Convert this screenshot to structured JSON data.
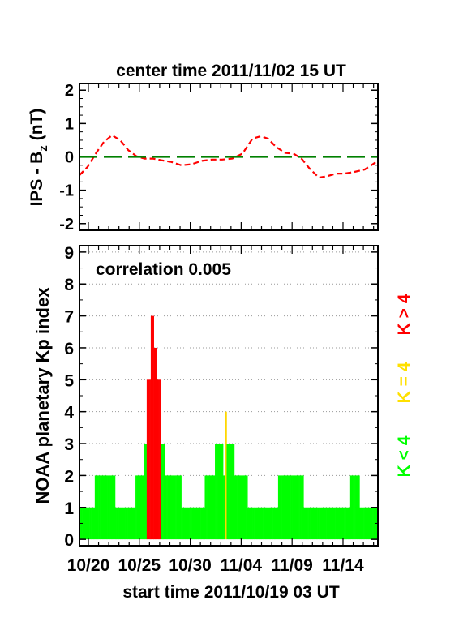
{
  "chart_data": [
    {
      "type": "line",
      "title": "center time 2011/11/02 15 UT",
      "ylabel_main": "IPS - B",
      "ylabel_sub": "z",
      "ylabel_unit": "(nT)",
      "ylim": [
        -2.2,
        2.2
      ],
      "yticks": [
        "2",
        "1",
        "0",
        "-1",
        "-2"
      ],
      "ytick_values": [
        2,
        1,
        0,
        -1,
        -2
      ],
      "xlim_days": [
        0,
        29.3
      ],
      "series": [
        {
          "color": "#ff0000",
          "style": "dashed",
          "x_days": [
            0,
            0.8,
            1.6,
            2.4,
            3.2,
            4.0,
            4.8,
            5.6,
            6.4,
            7.2,
            8.0,
            9.0,
            10.0,
            11.0,
            12.0,
            13.0,
            14.0,
            15.0,
            16.0,
            17.0,
            17.8,
            18.5,
            19.3,
            20.2,
            21.0,
            21.8,
            22.6,
            23.5,
            24.3,
            25.2,
            26.0,
            27.0,
            28.0,
            29.3
          ],
          "y": [
            -0.55,
            -0.3,
            0.1,
            0.45,
            0.65,
            0.5,
            0.2,
            0.02,
            -0.05,
            -0.05,
            -0.1,
            -0.15,
            -0.25,
            -0.22,
            -0.12,
            -0.08,
            -0.08,
            -0.05,
            0.1,
            0.55,
            0.62,
            0.55,
            0.3,
            0.12,
            0.1,
            -0.05,
            -0.35,
            -0.62,
            -0.58,
            -0.5,
            -0.5,
            -0.45,
            -0.38,
            -0.12
          ]
        },
        {
          "color": "#008000",
          "style": "long-dash",
          "x_days": [
            0,
            29.3
          ],
          "y": [
            0,
            0
          ]
        }
      ]
    },
    {
      "type": "bar",
      "annotation": "correlation 0.005",
      "ylabel": "NOAA planetary Kp index",
      "xlabel": "start time 2011/10/19 03 UT",
      "xticks": [
        "10/20",
        "10/25",
        "10/30",
        "11/04",
        "11/09",
        "11/14"
      ],
      "xtick_days": [
        0.875,
        5.875,
        10.875,
        15.875,
        20.875,
        25.875
      ],
      "ylim": [
        -0.2,
        9.2
      ],
      "yticks": [
        "0",
        "1",
        "2",
        "3",
        "4",
        "5",
        "6",
        "7",
        "8",
        "9"
      ],
      "grid": "dotted horizontal",
      "bar_width_days": 0.125,
      "legend": [
        {
          "label": "K < 4",
          "color": "#00ff00"
        },
        {
          "label": "K = 4",
          "color": "#ffe000"
        },
        {
          "label": "K > 4",
          "color": "#ff0000"
        }
      ],
      "colors": {
        "low": "#00ff00",
        "equal": "#ffd700",
        "high": "#ff0000"
      },
      "segments": [
        {
          "start_day": 0.0,
          "end_day": 1.5,
          "value": 1
        },
        {
          "start_day": 1.5,
          "end_day": 3.5,
          "value": 2
        },
        {
          "start_day": 3.5,
          "end_day": 5.5,
          "value": 1
        },
        {
          "start_day": 5.5,
          "end_day": 6.3,
          "value": 2
        },
        {
          "start_day": 6.3,
          "end_day": 6.6,
          "value": 3
        },
        {
          "start_day": 6.6,
          "end_day": 7.0,
          "value": 5
        },
        {
          "start_day": 7.0,
          "end_day": 7.3,
          "value": 7
        },
        {
          "start_day": 7.3,
          "end_day": 7.6,
          "value": 6
        },
        {
          "start_day": 7.6,
          "end_day": 8.0,
          "value": 5
        },
        {
          "start_day": 8.0,
          "end_day": 8.4,
          "value": 3
        },
        {
          "start_day": 8.4,
          "end_day": 10.0,
          "value": 2
        },
        {
          "start_day": 10.0,
          "end_day": 12.3,
          "value": 1
        },
        {
          "start_day": 12.3,
          "end_day": 13.3,
          "value": 2
        },
        {
          "start_day": 13.3,
          "end_day": 14.1,
          "value": 3
        },
        {
          "start_day": 14.1,
          "end_day": 14.3,
          "value": 2
        },
        {
          "start_day": 14.3,
          "end_day": 14.45,
          "value": 4
        },
        {
          "start_day": 14.45,
          "end_day": 15.2,
          "value": 3
        },
        {
          "start_day": 15.2,
          "end_day": 16.5,
          "value": 2
        },
        {
          "start_day": 16.5,
          "end_day": 19.5,
          "value": 1
        },
        {
          "start_day": 19.5,
          "end_day": 22.0,
          "value": 2
        },
        {
          "start_day": 22.0,
          "end_day": 26.5,
          "value": 1
        },
        {
          "start_day": 26.5,
          "end_day": 27.5,
          "value": 2
        },
        {
          "start_day": 27.5,
          "end_day": 29.3,
          "value": 1
        }
      ]
    }
  ]
}
